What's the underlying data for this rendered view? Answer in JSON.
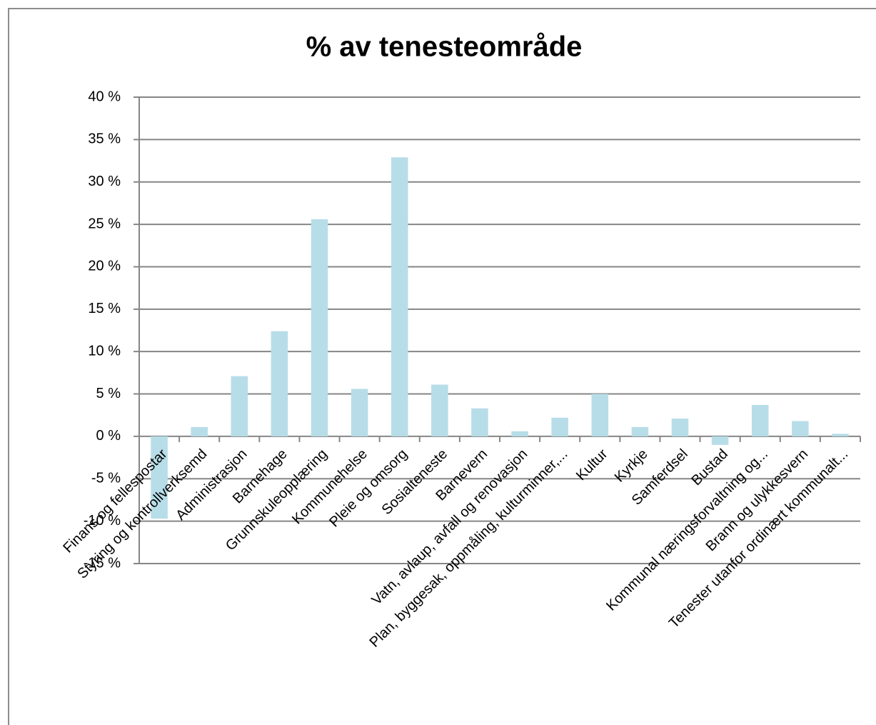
{
  "chart_data": {
    "type": "bar",
    "title": "% av tenesteområde",
    "categories": [
      "Finans og fellespostar",
      "Styring og kontrollverksemd",
      "Administrasjon",
      "Barnehage",
      "Grunnskuleopplæring",
      "Kommunehelse",
      "Pleie og omsorg",
      "Sosialteneste",
      "Barnevern",
      "Vatn, avlaup, avfall og renovasjon",
      "Plan, byggesak, oppmåling, kulturminner,...",
      "Kultur",
      "Kyrkje",
      "Samferdsel",
      "Bustad",
      "Kommunal næringsforvaltning og...",
      "Brann og ulykkesvern",
      "Tenester utanfor ordinært kommunalt..."
    ],
    "values": [
      -9.7,
      1.1,
      7.1,
      12.4,
      25.6,
      5.6,
      32.9,
      6.1,
      3.3,
      0.6,
      2.2,
      5.0,
      1.1,
      2.1,
      -1.0,
      3.7,
      1.8,
      0.3
    ],
    "color": "#b7dde8",
    "ylim": [
      -15,
      40
    ],
    "yticks": [
      {
        "value": -15,
        "label": "-15 %"
      },
      {
        "value": -10,
        "label": "-10 %"
      },
      {
        "value": -5,
        "label": "-5 %"
      },
      {
        "value": 0,
        "label": "0 %"
      },
      {
        "value": 5,
        "label": "5 %"
      },
      {
        "value": 10,
        "label": "10 %"
      },
      {
        "value": 15,
        "label": "15 %"
      },
      {
        "value": 20,
        "label": "20 %"
      },
      {
        "value": 25,
        "label": "25 %"
      },
      {
        "value": 30,
        "label": "30 %"
      },
      {
        "value": 35,
        "label": "35 %"
      },
      {
        "value": 40,
        "label": "40 %"
      }
    ],
    "grid": true
  }
}
